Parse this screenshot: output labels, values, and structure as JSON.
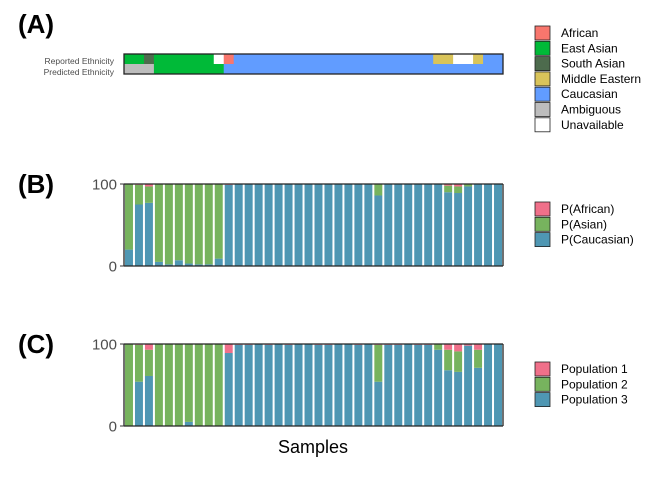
{
  "panel_labels": [
    "(A)",
    "(B)",
    "(C)"
  ],
  "xlabel": "Samples",
  "colors": {
    "African": "#F8766D",
    "East Asian": "#00BA38",
    "South Asian": "#4D6B4D",
    "Middle Eastern": "#D9C45A",
    "Caucasian": "#619CFF",
    "Ambiguous": "#BDBDBD",
    "Unavailable": "#FFFFFF",
    "pink": "#F0708A",
    "green": "#77B35E",
    "blue": "#4F97B3"
  },
  "chart_data": [
    {
      "type": "heatmap",
      "panel": "(A)",
      "row_labels": [
        "Reported Ethnicity",
        "Predicted Ethnicity"
      ],
      "legend": [
        "African",
        "East Asian",
        "South Asian",
        "Middle Eastern",
        "Caucasian",
        "Ambiguous",
        "Unavailable"
      ],
      "legend_placement": "right",
      "columns": 38,
      "reported_runs": [
        {
          "value": "East Asian",
          "count": 2
        },
        {
          "value": "South Asian",
          "count": 1
        },
        {
          "value": "East Asian",
          "count": 6
        },
        {
          "value": "Unavailable",
          "count": 1
        },
        {
          "value": "African",
          "count": 1
        },
        {
          "value": "Caucasian",
          "count": 20
        },
        {
          "value": "Middle Eastern",
          "count": 2
        },
        {
          "value": "Unavailable",
          "count": 2
        },
        {
          "value": "Middle Eastern",
          "count": 1
        },
        {
          "value": "Caucasian",
          "count": 2
        }
      ],
      "predicted_runs": [
        {
          "value": "Ambiguous",
          "count": 3
        },
        {
          "value": "East Asian",
          "count": 7
        },
        {
          "value": "Caucasian",
          "count": 28
        }
      ]
    },
    {
      "type": "bar",
      "stacked": true,
      "panel": "(B)",
      "ylim": [
        0,
        100
      ],
      "yticks": [
        0,
        100
      ],
      "legend_placement": "right",
      "series": [
        {
          "name": "P(African)",
          "color": "pink",
          "values": [
            0,
            1,
            3,
            0,
            0,
            0,
            0,
            0,
            0,
            0,
            1,
            0,
            0,
            0,
            0,
            0,
            0,
            0,
            0,
            0,
            0,
            0,
            0,
            0,
            0,
            0,
            0,
            0,
            0,
            0,
            0,
            0,
            2,
            3,
            0,
            0,
            0,
            0
          ]
        },
        {
          "name": "P(Asian)",
          "color": "green",
          "values": [
            80,
            24,
            20,
            95,
            98,
            93,
            97,
            98,
            98,
            91,
            0,
            0,
            0,
            0,
            0,
            0,
            0,
            0,
            0,
            0,
            0,
            0,
            0,
            0,
            0,
            14,
            0,
            0,
            0,
            0,
            0,
            0,
            8,
            8,
            3,
            0,
            0,
            0
          ]
        },
        {
          "name": "P(Caucasian)",
          "color": "blue",
          "values": [
            20,
            75,
            77,
            5,
            2,
            7,
            3,
            2,
            2,
            9,
            99,
            100,
            100,
            100,
            100,
            100,
            100,
            100,
            100,
            100,
            100,
            100,
            100,
            100,
            100,
            86,
            100,
            100,
            100,
            100,
            100,
            100,
            90,
            89,
            97,
            100,
            100,
            100
          ]
        }
      ]
    },
    {
      "type": "bar",
      "stacked": true,
      "panel": "(C)",
      "ylim": [
        0,
        100
      ],
      "yticks": [
        0,
        100
      ],
      "legend_placement": "right",
      "series": [
        {
          "name": "Population 1",
          "color": "pink",
          "values": [
            0,
            1,
            7,
            0,
            0,
            0,
            0,
            0,
            0,
            0,
            11,
            1,
            1,
            0,
            1,
            0,
            1,
            0,
            0,
            1,
            1,
            0,
            0,
            1,
            0,
            1,
            1,
            1,
            0,
            1,
            1,
            0,
            7,
            9,
            2,
            7,
            0,
            0
          ]
        },
        {
          "name": "Population 2",
          "color": "green",
          "values": [
            100,
            45,
            32,
            100,
            100,
            100,
            95,
            100,
            100,
            100,
            0,
            0,
            0,
            0,
            0,
            0,
            0,
            0,
            0,
            0,
            0,
            0,
            0,
            0,
            0,
            45,
            0,
            0,
            0,
            0,
            0,
            7,
            25,
            25,
            0,
            22,
            0,
            0
          ]
        },
        {
          "name": "Population 3",
          "color": "blue",
          "values": [
            0,
            54,
            61,
            0,
            0,
            0,
            5,
            0,
            0,
            0,
            89,
            99,
            99,
            100,
            99,
            100,
            99,
            100,
            100,
            99,
            99,
            100,
            100,
            99,
            100,
            54,
            99,
            99,
            100,
            99,
            99,
            93,
            68,
            66,
            98,
            71,
            100,
            100
          ]
        }
      ]
    }
  ]
}
